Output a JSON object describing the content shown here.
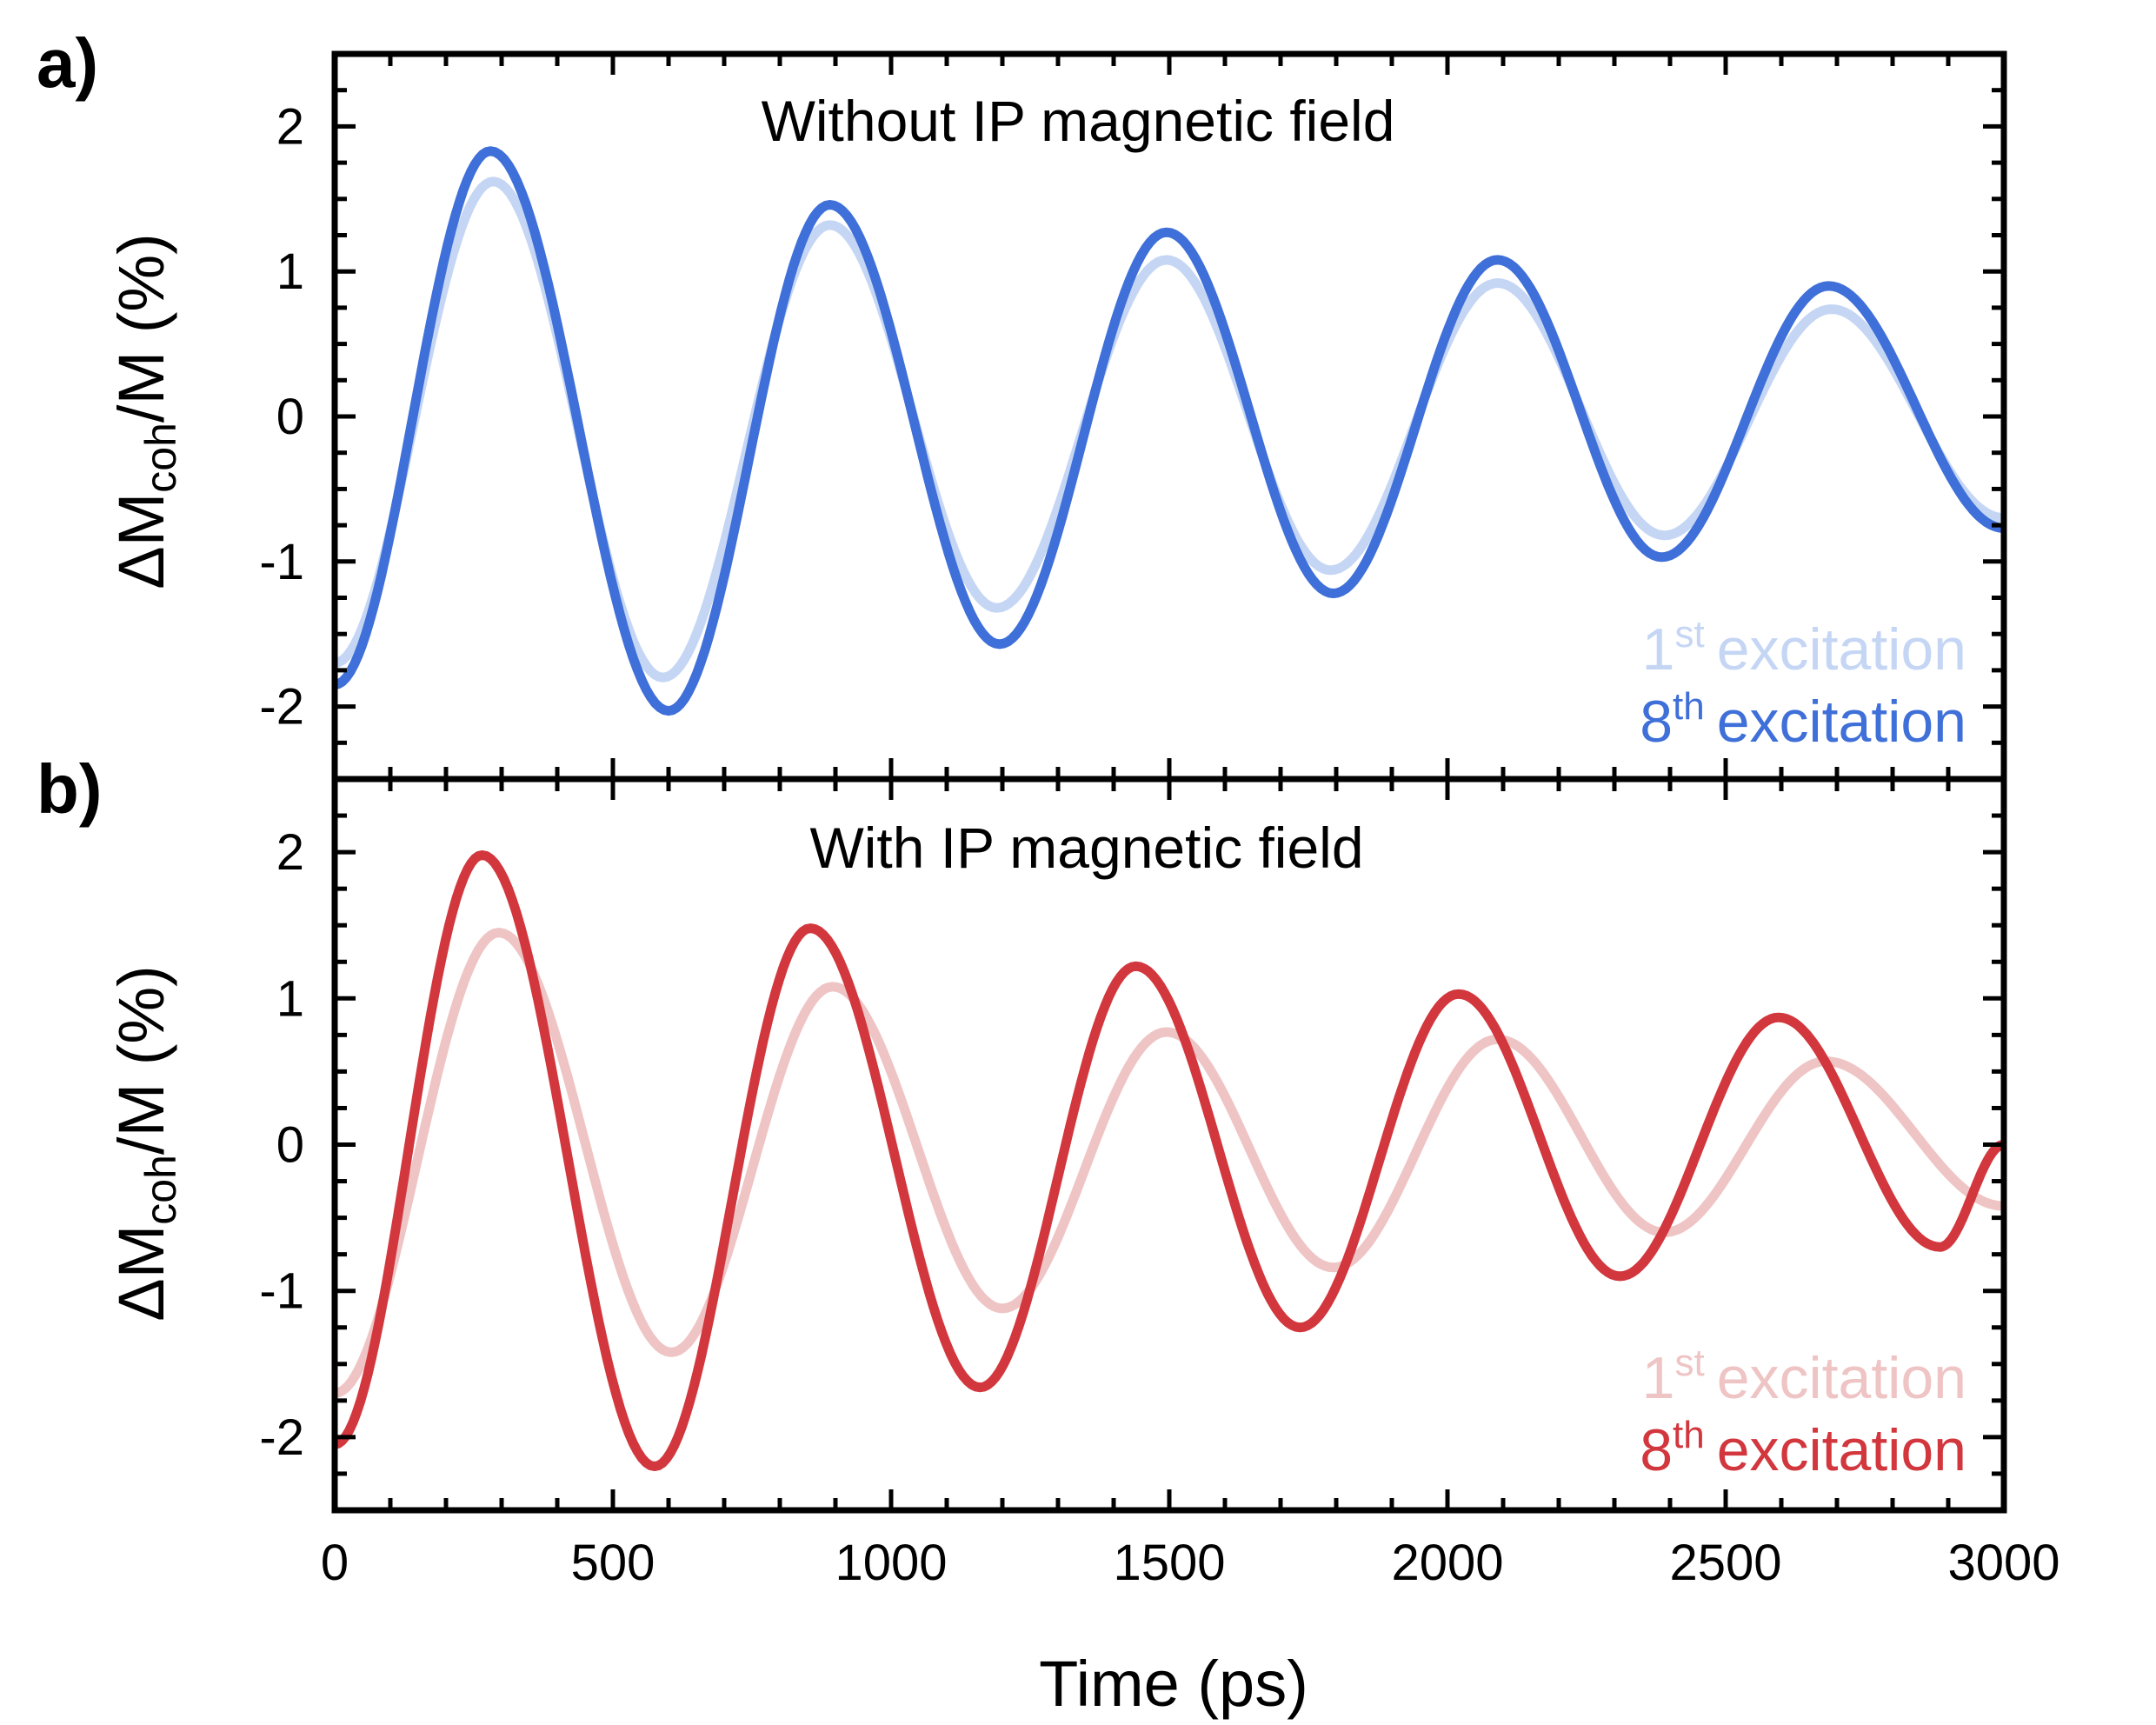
{
  "chart_data": [
    {
      "panel_label": "a)",
      "type": "line",
      "title": "Without IP magnetic field",
      "xlabel": "Time (ps)",
      "ylabel": {
        "delta": "Δ",
        "main": "M",
        "sub": "coh",
        "rest": "/M (%)"
      },
      "xlim": [
        0,
        3000
      ],
      "ylim": [
        -2.5,
        2.5
      ],
      "xticks": [
        0,
        500,
        1000,
        1500,
        2000,
        2500,
        3000
      ],
      "yticks": [
        -2,
        -1,
        0,
        1,
        2
      ],
      "ytick_labels": [
        "-2",
        "-1",
        "0",
        "1",
        "2"
      ],
      "series": [
        {
          "name": "1st excitation",
          "label_num": "1",
          "label_sup": "st",
          "label_text": "excitation",
          "color": "#c5d6f5",
          "model": {
            "x0": 0,
            "y0": -1.7,
            "peak_t": 285,
            "amp": 1.62,
            "period": 600,
            "tau": 3800
          },
          "peaks": [
            [
              285,
              1.62
            ],
            [
              590,
              -1.8
            ],
            [
              890,
              1.32
            ],
            [
              1190,
              -1.32
            ],
            [
              1495,
              1.08
            ],
            [
              1790,
              -1.06
            ],
            [
              2090,
              0.92
            ],
            [
              2390,
              -0.82
            ],
            [
              2690,
              0.74
            ],
            [
              3000,
              -0.7
            ]
          ]
        },
        {
          "name": "8th excitation",
          "label_num": "8",
          "label_sup": "th",
          "label_text": "excitation",
          "color": "#3f6fd8",
          "model": {
            "x0": 0,
            "y0": -1.85,
            "peak_t": 280,
            "amp": 1.83,
            "period": 600,
            "tau": 3000
          },
          "peaks": [
            [
              280,
              1.83
            ],
            [
              600,
              -2.03
            ],
            [
              890,
              1.46
            ],
            [
              1195,
              -1.57
            ],
            [
              1495,
              1.27
            ],
            [
              1795,
              -1.22
            ],
            [
              2090,
              1.08
            ],
            [
              2385,
              -0.97
            ],
            [
              2685,
              0.9
            ],
            [
              3000,
              -0.77
            ]
          ]
        }
      ]
    },
    {
      "panel_label": "b)",
      "type": "line",
      "title": "With IP magnetic field",
      "xlabel": "Time (ps)",
      "ylabel": {
        "delta": "Δ",
        "main": "M",
        "sub": "coh",
        "rest": "/M (%)"
      },
      "xlim": [
        0,
        3000
      ],
      "ylim": [
        -2.5,
        2.5
      ],
      "xticks": [
        0,
        500,
        1000,
        1500,
        2000,
        2500,
        3000
      ],
      "xtick_labels": [
        "0",
        "500",
        "1000",
        "1500",
        "2000",
        "2500",
        "3000"
      ],
      "yticks": [
        -2,
        -1,
        0,
        1,
        2
      ],
      "ytick_labels": [
        "-2",
        "-1",
        "0",
        "1",
        "2"
      ],
      "series": [
        {
          "name": "1st excitation",
          "label_num": "1",
          "label_sup": "st",
          "label_text": "excitation",
          "color": "#efc4c4",
          "model": {
            "x0": 0,
            "y0": -1.7,
            "peak_t": 295,
            "amp": 1.45,
            "period": 600
          },
          "peaks": [
            [
              295,
              1.45
            ],
            [
              605,
              -1.42
            ],
            [
              895,
              1.08
            ],
            [
              1200,
              -1.12
            ],
            [
              1495,
              0.77
            ],
            [
              1795,
              -0.84
            ],
            [
              2090,
              0.72
            ],
            [
              2390,
              -0.6
            ],
            [
              2680,
              0.57
            ],
            [
              3000,
              -0.42
            ]
          ]
        },
        {
          "name": "8th excitation",
          "label_num": "8",
          "label_sup": "th",
          "label_text": "excitation",
          "color": "#d2373e",
          "model": {
            "x0": 0,
            "y0": -2.05,
            "peak_t": 265,
            "amp": 1.98,
            "period": 585
          },
          "peaks": [
            [
              265,
              1.98
            ],
            [
              575,
              -2.2
            ],
            [
              855,
              1.48
            ],
            [
              1160,
              -1.66
            ],
            [
              1440,
              1.22
            ],
            [
              1735,
              -1.25
            ],
            [
              2020,
              1.03
            ],
            [
              2310,
              -0.9
            ],
            [
              2595,
              0.87
            ],
            [
              2885,
              -0.7
            ],
            [
              3000,
              0.0
            ]
          ]
        }
      ]
    }
  ]
}
